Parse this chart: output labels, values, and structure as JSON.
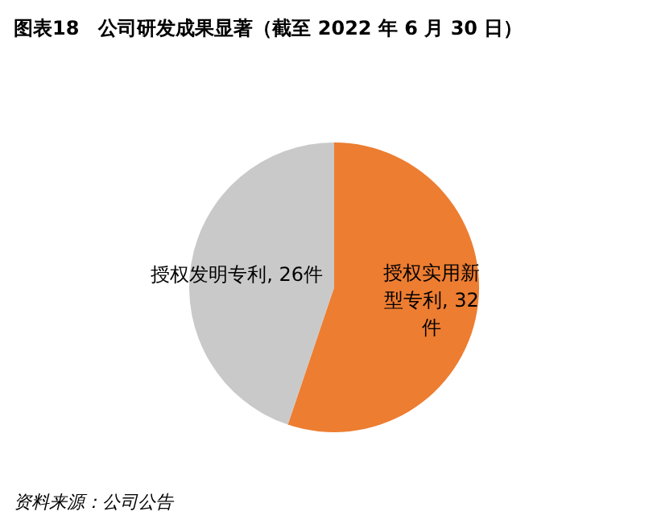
{
  "chart_data": {
    "type": "pie",
    "title": "图表18　公司研发成果显著（截至 2022 年 6 月 30 日）",
    "categories": [
      "授权实用新型专利",
      "授权发明专利"
    ],
    "values": [
      32,
      26
    ],
    "colors": [
      "#ed7d31",
      "#c9c9c9"
    ],
    "value_labels": [
      "32件",
      "26件"
    ],
    "annotations": [
      "资料来源：公司公告"
    ]
  }
}
